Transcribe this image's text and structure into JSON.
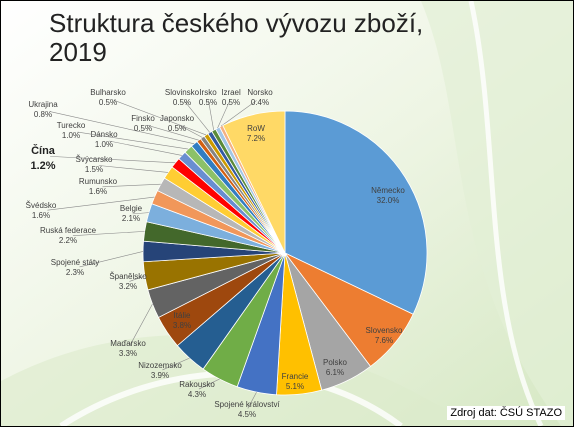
{
  "chart_data": {
    "type": "pie",
    "title": "Struktura českého vývozu zboží, 2019",
    "source": "Zdroj dat: ČSÚ STAZO",
    "categories": [
      "Německo",
      "Slovensko",
      "Polsko",
      "Francie",
      "Spojené království",
      "Rakousko",
      "Nizozemsko",
      "Itálie",
      "Maďarsko",
      "Španělsko",
      "Spojené státy",
      "Ruská federace",
      "Belgie",
      "Švédsko",
      "Rumunsko",
      "Švýcarsko",
      "Čína",
      "Dánsko",
      "Turecko",
      "Ukrajina",
      "Finsko",
      "Japonsko",
      "Bulharsko",
      "Slovinsko",
      "Irsko",
      "Izrael",
      "Norsko",
      "RoW"
    ],
    "values": [
      32.0,
      7.6,
      6.1,
      5.1,
      4.5,
      4.3,
      3.9,
      3.8,
      3.3,
      3.2,
      2.3,
      2.2,
      2.1,
      1.6,
      1.6,
      1.5,
      1.2,
      1.0,
      1.0,
      0.8,
      0.5,
      0.5,
      0.5,
      0.5,
      0.5,
      0.5,
      0.4,
      7.2
    ],
    "value_labels": [
      "32.0%",
      "7.6%",
      "6.1%",
      "5.1%",
      "4.5%",
      "4.3%",
      "3.9%",
      "3.8%",
      "3.3%",
      "3.2%",
      "2.3%",
      "2.2%",
      "2.1%",
      "1.6%",
      "1.6%",
      "1.5%",
      "1.2%",
      "1.0%",
      "1.0%",
      "0.8%",
      "0.5%",
      "0.5%",
      "0.5%",
      "0.5%",
      "0.5%",
      "0.5%",
      "0.4%",
      "7.2%"
    ],
    "colors": [
      "#5B9BD5",
      "#ED7D31",
      "#A5A5A5",
      "#FFC000",
      "#4472C4",
      "#70AD47",
      "#255E91",
      "#9E480E",
      "#636363",
      "#997300",
      "#264478",
      "#43682B",
      "#7CAFDD",
      "#F1975A",
      "#B7B7B7",
      "#FFCD33",
      "#FF0000",
      "#698ED0",
      "#8CC168",
      "#327DC2",
      "#D26012",
      "#848484",
      "#CC9A00",
      "#335AA1",
      "#5A8A39",
      "#A2C6E7",
      "#F4B183",
      "#FFD966"
    ]
  }
}
